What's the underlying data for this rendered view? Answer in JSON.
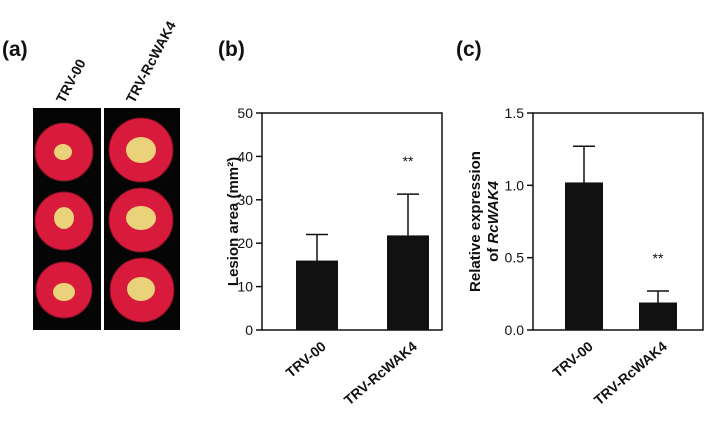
{
  "photo_panel": {
    "panel_label": "(a)",
    "columns": [
      "TRV-00",
      "TRV-RcWAK4"
    ]
  },
  "chart_data": [
    {
      "type": "bar",
      "panel_label": "(b)",
      "ylabel": "Lesion area (mm²)",
      "categories": [
        "TRV-00",
        "TRV-RcWAK4"
      ],
      "values": [
        16,
        21.8
      ],
      "errors": [
        6,
        9.5
      ],
      "annotations": [
        null,
        "**"
      ],
      "color": "#111111",
      "ylim": [
        0,
        50
      ],
      "yticks": [
        0,
        10,
        20,
        30,
        40,
        50
      ]
    },
    {
      "type": "bar",
      "panel_label": "(c)",
      "ylabel": [
        "Relative expression",
        "of RcWAK4"
      ],
      "categories": [
        "TRV-00",
        "TRV-RcWAK4"
      ],
      "values": [
        1.02,
        0.19
      ],
      "errors": [
        0.25,
        0.08
      ],
      "annotations": [
        null,
        "**"
      ],
      "color": "#111111",
      "ylim": [
        0,
        1.5
      ],
      "yticks": [
        {
          "value": 0,
          "label": "0.0"
        },
        {
          "value": 0.5,
          "label": "0.5"
        },
        {
          "value": 1,
          "label": "1.0"
        },
        {
          "value": 1.5,
          "label": "1.5"
        }
      ]
    }
  ]
}
